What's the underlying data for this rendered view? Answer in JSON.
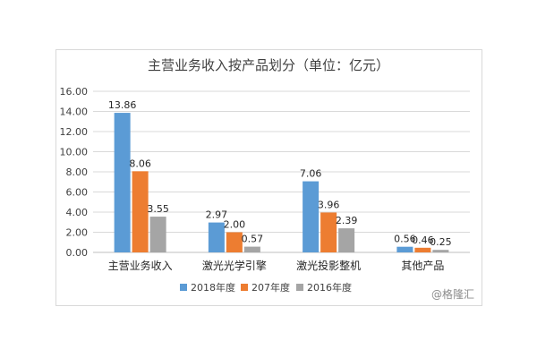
{
  "chart_data": {
    "type": "bar",
    "title": "主营业务收入按产品划分（单位：亿元）",
    "categories": [
      "主营业务收入",
      "激光光学引擎",
      "激光投影整机",
      "其他产品"
    ],
    "series": [
      {
        "name": "2018年度",
        "color": "#5b9bd5",
        "values": [
          13.86,
          2.97,
          7.06,
          0.56
        ]
      },
      {
        "name": "207年度",
        "color": "#ed7d31",
        "values": [
          8.06,
          2.0,
          3.96,
          0.46
        ]
      },
      {
        "name": "2016年度",
        "color": "#a5a5a5",
        "values": [
          3.55,
          0.57,
          2.39,
          0.25
        ]
      }
    ],
    "data_labels": [
      [
        "13.86",
        "2.97",
        "7.06",
        "0.56"
      ],
      [
        "8.06",
        "2.00",
        "3.96",
        "0.46"
      ],
      [
        "3.55",
        "0.57",
        "2.39",
        "0.25"
      ]
    ],
    "y_ticks": [
      "0.00",
      "2.00",
      "4.00",
      "6.00",
      "8.00",
      "10.00",
      "12.00",
      "14.00",
      "16.00"
    ],
    "ylim": [
      0,
      16
    ],
    "grid": true,
    "legend_position": "bottom"
  },
  "watermark": "@格隆汇"
}
